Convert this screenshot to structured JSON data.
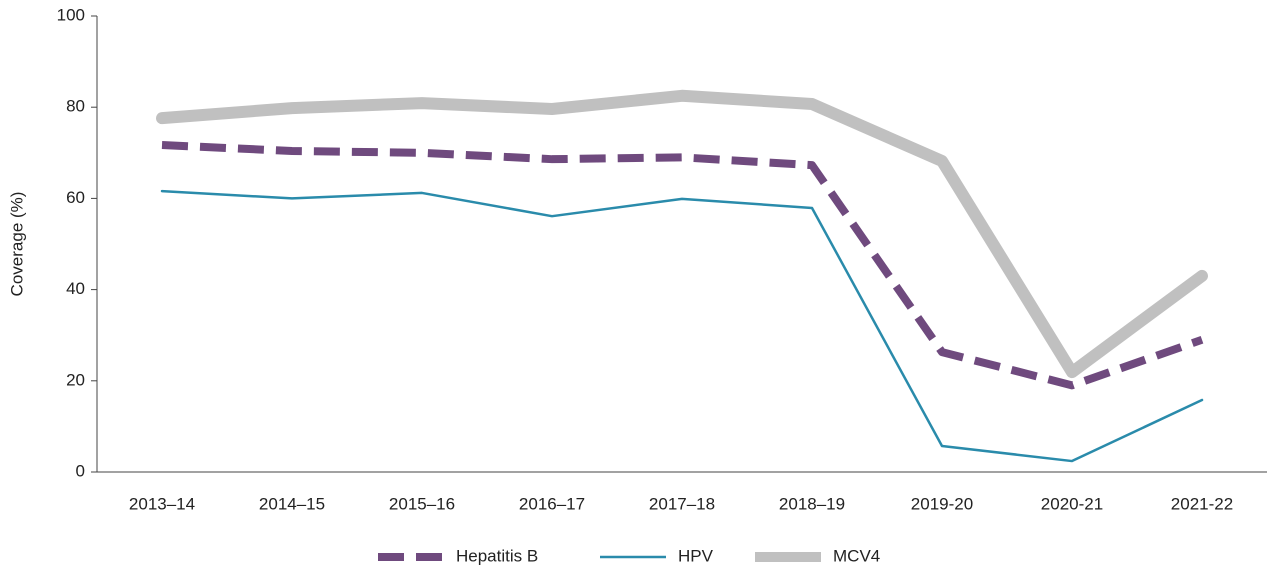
{
  "chart_data": {
    "type": "line",
    "y_label": "Coverage (%)",
    "categories": [
      "2013–14",
      "2014–15",
      "2015–16",
      "2016–17",
      "2017–18",
      "2018–19",
      "2019-20",
      "2020-21",
      "2021-22"
    ],
    "series": [
      {
        "name": "Hepatitis B",
        "color": "#6f4a7e",
        "line_width": 8,
        "dashed": true,
        "values": [
          71.7,
          70.4,
          70,
          68.6,
          69,
          67.3,
          26.3,
          19,
          29
        ]
      },
      {
        "name": "HPV",
        "color": "#2a8bab",
        "line_width": 2.5,
        "dashed": false,
        "values": [
          61.6,
          60,
          61.2,
          56.1,
          59.9,
          57.9,
          5.7,
          2.4,
          15.8
        ]
      },
      {
        "name": "MCV4",
        "color": "#c0c0c0",
        "line_width": 12,
        "dashed": false,
        "values": [
          77.6,
          79.8,
          80.9,
          79.6,
          82.5,
          80.7,
          68.2,
          21.9,
          43
        ]
      }
    ],
    "ylim": [
      0,
      100
    ],
    "yticks": [
      0,
      20,
      40,
      60,
      80,
      100
    ],
    "legend": "bottom"
  }
}
